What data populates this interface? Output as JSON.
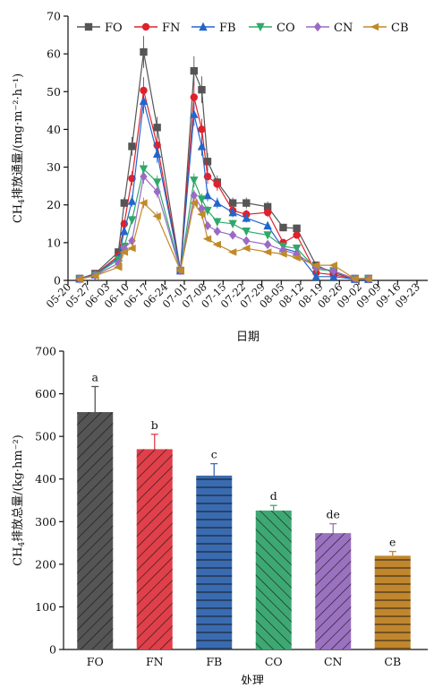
{
  "chart_data": [
    {
      "type": "line",
      "ylabel": "CH4排放通量/(mg·m⁻²·h⁻¹)",
      "xlabel": "日期",
      "ylim": [
        0,
        70
      ],
      "yticks": [
        0,
        10,
        20,
        30,
        40,
        50,
        60,
        70
      ],
      "xtick_labels": [
        "05-20",
        "05-27",
        "06-03",
        "06-10",
        "06-17",
        "06-24",
        "07-01",
        "07-08",
        "07-15",
        "07-22",
        "07-29",
        "08-05",
        "08-12",
        "08-19",
        "08-26",
        "09-02",
        "09-09",
        "09-16",
        "09-23"
      ],
      "xlim": [
        0,
        18
      ],
      "legend_position": "top",
      "series": [
        {
          "name": "FO",
          "color": "#555555",
          "marker": "square",
          "points": [
            [
              0.6,
              0.5
            ],
            [
              1.4,
              1.8
            ],
            [
              2.6,
              7.5
            ],
            [
              2.9,
              20.5
            ],
            [
              3.3,
              35.5
            ],
            [
              3.9,
              60.5
            ],
            [
              4.6,
              40.5
            ],
            [
              5.8,
              2.6
            ],
            [
              6.5,
              55.5
            ],
            [
              6.9,
              50.5
            ],
            [
              7.2,
              31.5
            ],
            [
              7.7,
              26
            ],
            [
              8.5,
              20.5
            ],
            [
              9.2,
              20.5
            ],
            [
              10.3,
              19.5
            ],
            [
              11.1,
              14
            ],
            [
              11.8,
              13.8
            ],
            [
              12.8,
              4
            ],
            [
              13.7,
              2
            ],
            [
              14.8,
              0.5
            ],
            [
              15.5,
              0.5
            ]
          ]
        },
        {
          "name": "FN",
          "color": "#e0202c",
          "marker": "circle",
          "points": [
            [
              0.6,
              0.4
            ],
            [
              1.4,
              1.6
            ],
            [
              2.6,
              6.5
            ],
            [
              2.9,
              15
            ],
            [
              3.3,
              27
            ],
            [
              3.9,
              50.3
            ],
            [
              4.6,
              35.8
            ],
            [
              5.8,
              2.6
            ],
            [
              6.5,
              48.5
            ],
            [
              6.9,
              40
            ],
            [
              7.2,
              27.5
            ],
            [
              7.7,
              25.5
            ],
            [
              8.5,
              18.5
            ],
            [
              9.2,
              17.5
            ],
            [
              10.3,
              18
            ],
            [
              11.1,
              10
            ],
            [
              11.8,
              12
            ],
            [
              12.8,
              2
            ],
            [
              13.7,
              1.5
            ],
            [
              14.8,
              0.4
            ],
            [
              15.5,
              0.4
            ]
          ]
        },
        {
          "name": "FB",
          "color": "#2266cc",
          "marker": "triangle-up",
          "points": [
            [
              0.6,
              0.4
            ],
            [
              1.4,
              1.5
            ],
            [
              2.6,
              6
            ],
            [
              2.9,
              13
            ],
            [
              3.3,
              21
            ],
            [
              3.9,
              47.5
            ],
            [
              4.6,
              33.5
            ],
            [
              5.8,
              2.6
            ],
            [
              6.5,
              44
            ],
            [
              6.9,
              35.5
            ],
            [
              7.2,
              22.5
            ],
            [
              7.7,
              20.5
            ],
            [
              8.5,
              18
            ],
            [
              9.2,
              16.5
            ],
            [
              10.3,
              14.5
            ],
            [
              11.1,
              8.5
            ],
            [
              11.8,
              7.5
            ],
            [
              12.8,
              1
            ],
            [
              13.7,
              1
            ],
            [
              14.8,
              0.3
            ],
            [
              15.5,
              0.3
            ]
          ]
        },
        {
          "name": "CO",
          "color": "#2fa86a",
          "marker": "triangle-down",
          "points": [
            [
              0.6,
              0.4
            ],
            [
              1.4,
              1.4
            ],
            [
              2.6,
              5.5
            ],
            [
              2.9,
              9
            ],
            [
              3.3,
              16
            ],
            [
              3.9,
              29.5
            ],
            [
              4.6,
              26
            ],
            [
              5.8,
              2.6
            ],
            [
              6.5,
              26.5
            ],
            [
              6.9,
              21.5
            ],
            [
              7.2,
              18.5
            ],
            [
              7.7,
              15.5
            ],
            [
              8.5,
              15
            ],
            [
              9.2,
              13
            ],
            [
              10.3,
              12
            ],
            [
              11.1,
              9
            ],
            [
              11.8,
              8.5
            ],
            [
              12.8,
              3
            ],
            [
              13.7,
              2.5
            ],
            [
              14.8,
              0.4
            ],
            [
              15.5,
              0.4
            ]
          ]
        },
        {
          "name": "CN",
          "color": "#9a6bc4",
          "marker": "diamond",
          "points": [
            [
              0.6,
              0.4
            ],
            [
              1.4,
              1.3
            ],
            [
              2.6,
              4.5
            ],
            [
              2.9,
              8.5
            ],
            [
              3.3,
              10.5
            ],
            [
              3.9,
              27.5
            ],
            [
              4.6,
              23.5
            ],
            [
              5.8,
              2.6
            ],
            [
              6.5,
              22.5
            ],
            [
              6.9,
              19
            ],
            [
              7.2,
              14.5
            ],
            [
              7.7,
              13
            ],
            [
              8.5,
              12
            ],
            [
              9.2,
              10.5
            ],
            [
              10.3,
              9.5
            ],
            [
              11.1,
              8
            ],
            [
              11.8,
              7
            ],
            [
              12.8,
              3.5
            ],
            [
              13.7,
              2.5
            ],
            [
              14.8,
              0.4
            ],
            [
              15.5,
              0.4
            ]
          ]
        },
        {
          "name": "CB",
          "color": "#c08a28",
          "marker": "triangle-left",
          "points": [
            [
              0.6,
              0.3
            ],
            [
              1.4,
              1.2
            ],
            [
              2.6,
              3.5
            ],
            [
              2.9,
              7.5
            ],
            [
              3.3,
              8.5
            ],
            [
              3.9,
              20.5
            ],
            [
              4.6,
              17
            ],
            [
              5.8,
              2.6
            ],
            [
              6.5,
              20.5
            ],
            [
              6.9,
              17.5
            ],
            [
              7.2,
              11
            ],
            [
              7.7,
              9.5
            ],
            [
              8.5,
              7.5
            ],
            [
              9.2,
              8.5
            ],
            [
              10.3,
              7.5
            ],
            [
              11.1,
              7
            ],
            [
              11.8,
              6
            ],
            [
              12.8,
              4
            ],
            [
              13.7,
              4
            ],
            [
              14.8,
              0.4
            ],
            [
              15.5,
              0.4
            ]
          ]
        }
      ]
    },
    {
      "type": "bar",
      "ylabel": "CH4排放总量/(kg·hm⁻²)",
      "xlabel": "处理",
      "ylim": [
        0,
        700
      ],
      "yticks": [
        0,
        100,
        200,
        300,
        400,
        500,
        600,
        700
      ],
      "categories": [
        "FO",
        "FN",
        "FB",
        "CO",
        "CN",
        "CB"
      ],
      "values": [
        557,
        470,
        408,
        326,
        273,
        220
      ],
      "errors": [
        60,
        35,
        28,
        12,
        22,
        10
      ],
      "significance_letters": [
        "a",
        "b",
        "c",
        "d",
        "de",
        "e"
      ],
      "colors": [
        "#555555",
        "#e0404a",
        "#3a6bb0",
        "#3ea873",
        "#9a72c0",
        "#c0862e"
      ]
    }
  ]
}
